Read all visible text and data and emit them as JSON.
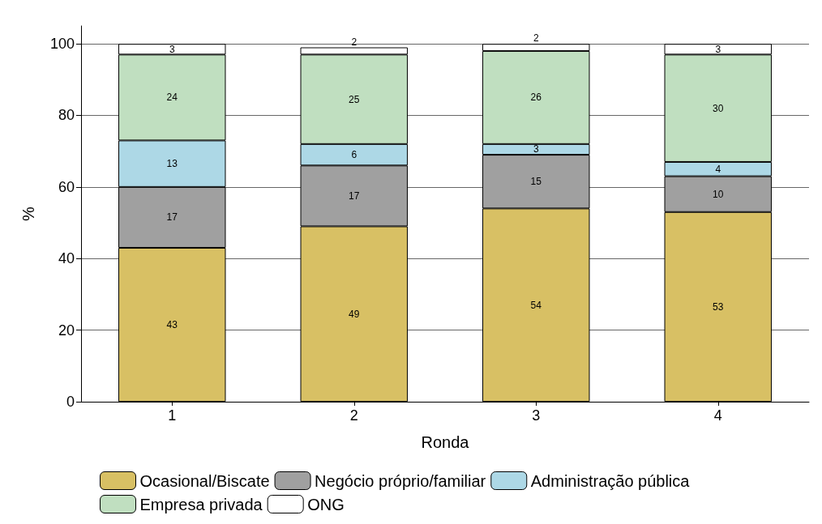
{
  "chart_data": {
    "type": "bar",
    "stacked": true,
    "xlabel": "Ronda",
    "ylabel": "%",
    "categories": [
      "1",
      "2",
      "3",
      "4"
    ],
    "series": [
      {
        "name": "Ocasional/Biscate",
        "color": "#d8c064",
        "values": [
          43,
          49,
          54,
          53
        ]
      },
      {
        "name": "Negócio próprio/familiar",
        "color": "#a0a0a0",
        "values": [
          17,
          17,
          15,
          10
        ]
      },
      {
        "name": "Administração pública",
        "color": "#add8e6",
        "values": [
          13,
          6,
          3,
          4
        ]
      },
      {
        "name": "Empresa privada",
        "color": "#c0dfc0",
        "values": [
          24,
          25,
          26,
          30
        ]
      },
      {
        "name": "ONG",
        "color": "#ffffff",
        "values": [
          3,
          2,
          2,
          3
        ]
      }
    ],
    "ylim": [
      0,
      105
    ],
    "yticks": [
      0,
      20,
      40,
      60,
      80,
      100
    ],
    "grid": "y",
    "legend": "bottom",
    "data_labels": true
  }
}
